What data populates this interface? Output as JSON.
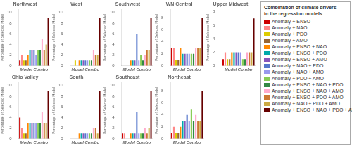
{
  "chart_data": [
    {
      "type": "bar",
      "title": "Northwest",
      "xlabel": "Model Combo",
      "ylabel": "Percentage of Selected Model",
      "categories": [
        "Anomaly + ENSO",
        "Anomaly + NAO",
        "Anomaly + PDO",
        "Anomaly + AMO",
        "Anomaly + ENSO + NAO",
        "Anomaly + ENSO + PDO",
        "Anomaly + ENSO + AMO",
        "Anomaly + NAO + PDO",
        "Anomaly + NAO + AMO",
        "Anomaly + PDO + AMO",
        "Anomaly + ENSO + NAO + PDO",
        "Anomaly + ENSO + NAO + AMO",
        "Anomaly + ENSO + PDO + AMO",
        "Anomaly + NAO + PDO + AMO",
        "Anomaly + ENSO + NAO + PDO + AMO"
      ],
      "values": [
        1,
        2,
        1,
        1,
        2,
        3,
        3,
        3,
        2,
        3,
        3,
        5,
        3,
        4,
        9
      ],
      "colors": [
        "#cc0000",
        "#ff8888",
        "#ddcc00",
        "#996633",
        "#ff8800",
        "#00aaaa",
        "#8855bb",
        "#5577cc",
        "#9999ee",
        "#88cc55",
        "#338844",
        "#ffaacc",
        "#cc7733",
        "#ccaa44",
        "#660000"
      ],
      "ylim": [
        0,
        10.58
      ],
      "yticks": [
        0,
        2,
        4,
        6,
        8,
        10
      ],
      "grid": false,
      "tick_labels": "y",
      "legend": "right"
    },
    {
      "type": "bar",
      "title": "West",
      "xlabel": "Model Combo",
      "ylabel": "Percentage of Selected Model",
      "categories": [
        "Anomaly + ENSO",
        "Anomaly + NAO",
        "Anomaly + PDO",
        "Anomaly + AMO",
        "Anomaly + ENSO + NAO",
        "Anomaly + ENSO + PDO",
        "Anomaly + ENSO + AMO",
        "Anomaly + NAO + PDO",
        "Anomaly + NAO + AMO",
        "Anomaly + PDO + AMO",
        "Anomaly + ENSO + NAO + PDO",
        "Anomaly + ENSO + NAO + AMO",
        "Anomaly + ENSO + PDO + AMO",
        "Anomaly + NAO + PDO + AMO",
        "Anomaly + ENSO + NAO + PDO + AMO"
      ],
      "values": [
        0,
        0,
        1,
        0,
        1,
        1,
        1,
        1,
        1,
        1,
        1,
        3,
        2,
        2,
        9
      ],
      "colors": [
        "#cc0000",
        "#ff8888",
        "#ddcc00",
        "#996633",
        "#ff8800",
        "#00aaaa",
        "#8855bb",
        "#5577cc",
        "#9999ee",
        "#88cc55",
        "#338844",
        "#ffaacc",
        "#cc7733",
        "#ccaa44",
        "#660000"
      ],
      "ylim": [
        0,
        10.58
      ],
      "yticks": [
        0,
        2,
        4,
        6,
        8,
        10
      ],
      "grid": false,
      "tick_labels": "y",
      "legend": "right"
    },
    {
      "type": "bar",
      "title": "Southwest",
      "xlabel": "Model Combo",
      "ylabel": "Percentage of Selected Model",
      "categories": [
        "Anomaly + ENSO",
        "Anomaly + NAO",
        "Anomaly + PDO",
        "Anomaly + AMO",
        "Anomaly + ENSO + NAO",
        "Anomaly + ENSO + PDO",
        "Anomaly + ENSO + AMO",
        "Anomaly + NAO + PDO",
        "Anomaly + NAO + AMO",
        "Anomaly + PDO + AMO",
        "Anomaly + ENSO + NAO + PDO",
        "Anomaly + ENSO + NAO + AMO",
        "Anomaly + ENSO + PDO + AMO",
        "Anomaly + NAO + PDO + AMO",
        "Anomaly + ENSO + NAO + PDO + AMO"
      ],
      "values": [
        0,
        0,
        0,
        0,
        1,
        1,
        1,
        6,
        1,
        2,
        1,
        2,
        3,
        3,
        9
      ],
      "colors": [
        "#cc0000",
        "#ff8888",
        "#ddcc00",
        "#996633",
        "#ff8800",
        "#00aaaa",
        "#8855bb",
        "#5577cc",
        "#9999ee",
        "#88cc55",
        "#338844",
        "#ffaacc",
        "#cc7733",
        "#ccaa44",
        "#660000"
      ],
      "ylim": [
        0,
        10.58
      ],
      "yticks": [
        0,
        2,
        4,
        6,
        8,
        10
      ],
      "grid": false,
      "tick_labels": "y",
      "legend": "right"
    },
    {
      "type": "bar",
      "title": "WN Central",
      "xlabel": "Model Combo",
      "ylabel": "Percentage of Selected Model",
      "categories": [
        "Anomaly + ENSO",
        "Anomaly + NAO",
        "Anomaly + PDO",
        "Anomaly + AMO",
        "Anomaly + ENSO + NAO",
        "Anomaly + ENSO + PDO",
        "Anomaly + ENSO + AMO",
        "Anomaly + NAO + PDO",
        "Anomaly + NAO + AMO",
        "Anomaly + PDO + AMO",
        "Anomaly + ENSO + NAO + PDO",
        "Anomaly + ENSO + NAO + AMO",
        "Anomaly + ENSO + PDO + AMO",
        "Anomaly + NAO + PDO + AMO",
        "Anomaly + ENSO + NAO + PDO + AMO"
      ],
      "values": [
        3,
        3,
        1,
        1,
        3,
        2,
        2,
        2,
        2,
        2,
        2,
        3,
        3,
        3,
        8
      ],
      "colors": [
        "#cc0000",
        "#ff8888",
        "#ddcc00",
        "#996633",
        "#ff8800",
        "#00aaaa",
        "#8855bb",
        "#5577cc",
        "#9999ee",
        "#88cc55",
        "#338844",
        "#ffaacc",
        "#cc7733",
        "#ccaa44",
        "#660000"
      ],
      "ylim": [
        0,
        9.46
      ],
      "yticks": [
        0,
        2,
        4,
        6,
        8
      ],
      "grid": false,
      "tick_labels": "y",
      "legend": "right"
    },
    {
      "type": "bar",
      "title": "Upper Midwest",
      "xlabel": "Model Combo",
      "ylabel": "Percentage of Selected Model",
      "categories": [
        "Anomaly + ENSO",
        "Anomaly + NAO",
        "Anomaly + PDO",
        "Anomaly + AMO",
        "Anomaly + ENSO + NAO",
        "Anomaly + ENSO + PDO",
        "Anomaly + ENSO + AMO",
        "Anomaly + NAO + PDO",
        "Anomaly + NAO + AMO",
        "Anomaly + PDO + AMO",
        "Anomaly + ENSO + NAO + PDO",
        "Anomaly + ENSO + NAO + AMO",
        "Anomaly + ENSO + PDO + AMO",
        "Anomaly + NAO + PDO + AMO",
        "Anomaly + ENSO + NAO + PDO + AMO"
      ],
      "values": [
        1,
        2,
        1,
        1,
        2,
        2,
        2,
        2,
        2,
        1,
        1,
        2,
        2,
        2,
        7
      ],
      "colors": [
        "#cc0000",
        "#ff8888",
        "#ddcc00",
        "#996633",
        "#ff8800",
        "#00aaaa",
        "#8855bb",
        "#5577cc",
        "#9999ee",
        "#88cc55",
        "#338844",
        "#ffaacc",
        "#cc7733",
        "#ccaa44",
        "#660000"
      ],
      "ylim": [
        0,
        8.34
      ],
      "yticks": [
        0,
        2,
        4,
        6,
        8
      ],
      "grid": false,
      "tick_labels": "y",
      "legend": "right"
    },
    {
      "type": "bar",
      "title": "Ohio Valley",
      "xlabel": "Model Combo",
      "ylabel": "Percentage of Selected Model",
      "categories": [
        "Anomaly + ENSO",
        "Anomaly + NAO",
        "Anomaly + PDO",
        "Anomaly + AMO",
        "Anomaly + ENSO + NAO",
        "Anomaly + ENSO + PDO",
        "Anomaly + ENSO + AMO",
        "Anomaly + NAO + PDO",
        "Anomaly + NAO + AMO",
        "Anomaly + PDO + AMO",
        "Anomaly + ENSO + NAO + PDO",
        "Anomaly + ENSO + NAO + AMO",
        "Anomaly + ENSO + PDO + AMO",
        "Anomaly + NAO + PDO + AMO",
        "Anomaly + ENSO + NAO + PDO + AMO"
      ],
      "values": [
        4,
        2,
        1,
        1,
        3,
        3,
        3,
        3,
        3,
        3,
        3,
        5,
        3,
        3,
        9
      ],
      "colors": [
        "#cc0000",
        "#ff8888",
        "#ddcc00",
        "#996633",
        "#ff8800",
        "#00aaaa",
        "#8855bb",
        "#5577cc",
        "#9999ee",
        "#88cc55",
        "#338844",
        "#ffaacc",
        "#cc7733",
        "#ccaa44",
        "#660000"
      ],
      "ylim": [
        0,
        10.58
      ],
      "yticks": [
        0,
        2,
        4,
        6,
        8,
        10
      ],
      "grid": false,
      "tick_labels": "y",
      "legend": "right"
    },
    {
      "type": "bar",
      "title": "South",
      "xlabel": "Model Combo",
      "ylabel": "Percentage of Selected Model",
      "categories": [
        "Anomaly + ENSO",
        "Anomaly + NAO",
        "Anomaly + PDO",
        "Anomaly + AMO",
        "Anomaly + ENSO + NAO",
        "Anomaly + ENSO + PDO",
        "Anomaly + ENSO + AMO",
        "Anomaly + NAO + PDO",
        "Anomaly + NAO + AMO",
        "Anomaly + PDO + AMO",
        "Anomaly + ENSO + NAO + PDO",
        "Anomaly + ENSO + NAO + AMO",
        "Anomaly + ENSO + PDO + AMO",
        "Anomaly + NAO + PDO + AMO",
        "Anomaly + ENSO + NAO + PDO + AMO"
      ],
      "values": [
        0,
        0,
        0,
        0,
        1,
        1,
        1,
        1,
        1,
        1,
        1,
        2,
        2,
        1,
        9
      ],
      "colors": [
        "#cc0000",
        "#ff8888",
        "#ddcc00",
        "#996633",
        "#ff8800",
        "#00aaaa",
        "#8855bb",
        "#5577cc",
        "#9999ee",
        "#88cc55",
        "#338844",
        "#ffaacc",
        "#cc7733",
        "#ccaa44",
        "#660000"
      ],
      "ylim": [
        0,
        10.58
      ],
      "yticks": [
        0,
        2,
        4,
        6,
        8,
        10
      ],
      "grid": false,
      "tick_labels": "y",
      "legend": "right"
    },
    {
      "type": "bar",
      "title": "Southeast",
      "xlabel": "Model Combo",
      "ylabel": "Percentage of Selected Model",
      "categories": [
        "Anomaly + ENSO",
        "Anomaly + NAO",
        "Anomaly + PDO",
        "Anomaly + AMO",
        "Anomaly + ENSO + NAO",
        "Anomaly + ENSO + PDO",
        "Anomaly + ENSO + AMO",
        "Anomaly + NAO + PDO",
        "Anomaly + NAO + AMO",
        "Anomaly + PDO + AMO",
        "Anomaly + ENSO + NAO + PDO",
        "Anomaly + ENSO + NAO + AMO",
        "Anomaly + ENSO + PDO + AMO",
        "Anomaly + NAO + PDO + AMO",
        "Anomaly + ENSO + NAO + PDO + AMO"
      ],
      "values": [
        1,
        1,
        0,
        0,
        1,
        1,
        1,
        5,
        1,
        1,
        1,
        2,
        1,
        2,
        9
      ],
      "colors": [
        "#cc0000",
        "#ff8888",
        "#ddcc00",
        "#996633",
        "#ff8800",
        "#00aaaa",
        "#8855bb",
        "#5577cc",
        "#9999ee",
        "#88cc55",
        "#338844",
        "#ffaacc",
        "#cc7733",
        "#ccaa44",
        "#660000"
      ],
      "ylim": [
        0,
        10.58
      ],
      "yticks": [
        0,
        2,
        4,
        6,
        8,
        10
      ],
      "grid": false,
      "tick_labels": "y",
      "legend": "right"
    },
    {
      "type": "bar",
      "title": "Northeast",
      "xlabel": "Model Combo",
      "ylabel": "Percentage of Selected Model",
      "categories": [
        "Anomaly + ENSO",
        "Anomaly + NAO",
        "Anomaly + PDO",
        "Anomaly + AMO",
        "Anomaly + ENSO + NAO",
        "Anomaly + ENSO + PDO",
        "Anomaly + ENSO + AMO",
        "Anomaly + NAO + PDO",
        "Anomaly + NAO + AMO",
        "Anomaly + PDO + AMO",
        "Anomaly + ENSO + NAO + PDO",
        "Anomaly + ENSO + NAO + AMO",
        "Anomaly + ENSO + PDO + AMO",
        "Anomaly + NAO + PDO + AMO",
        "Anomaly + ENSO + NAO + PDO + AMO"
      ],
      "values": [
        1,
        2,
        1,
        1,
        2,
        3,
        3,
        4,
        3,
        5,
        3,
        4,
        3,
        3,
        8
      ],
      "colors": [
        "#cc0000",
        "#ff8888",
        "#ddcc00",
        "#996633",
        "#ff8800",
        "#00aaaa",
        "#8855bb",
        "#5577cc",
        "#9999ee",
        "#88cc55",
        "#338844",
        "#ffaacc",
        "#cc7733",
        "#ccaa44",
        "#660000"
      ],
      "ylim": [
        0,
        9.46
      ],
      "yticks": [
        0,
        2,
        4,
        6,
        8
      ],
      "grid": false,
      "tick_labels": "y",
      "legend": "right"
    }
  ],
  "legend_title": "Combination of climate drivers\nin the regression models"
}
